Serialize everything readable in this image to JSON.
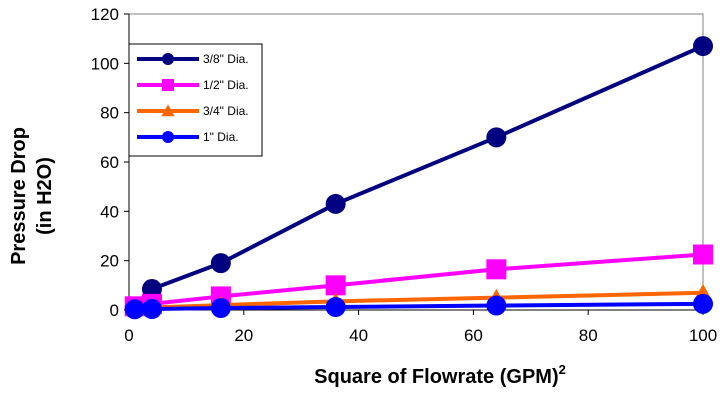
{
  "chart_data": {
    "type": "line",
    "title": "",
    "xlabel": "Square of Flowrate (GPM)",
    "xlabel_superscript": "2",
    "ylabel_line1": "Pressure Drop",
    "ylabel_line2": "(in H2O)",
    "xlim": [
      0,
      100
    ],
    "ylim": [
      0,
      120
    ],
    "x_ticks": [
      "0",
      "20",
      "40",
      "60",
      "80",
      "100"
    ],
    "y_ticks": [
      "0",
      "20",
      "40",
      "60",
      "80",
      "100",
      "120"
    ],
    "grid": false,
    "legend_position": "top-left",
    "series": [
      {
        "name": "3/8\" Dia.",
        "color": "#000080",
        "marker": "circle",
        "x": [
          1,
          4,
          16,
          36,
          64,
          100
        ],
        "y": [
          1,
          8.5,
          19,
          43,
          70,
          107
        ]
      },
      {
        "name": "1/2\" Dia.",
        "color": "#ff00ff",
        "marker": "square",
        "x": [
          1,
          4,
          16,
          36,
          64,
          100
        ],
        "y": [
          1.5,
          2.5,
          5.5,
          10,
          16.5,
          22.5
        ]
      },
      {
        "name": "3/4\" Dia.",
        "color": "#ff6600",
        "marker": "triangle",
        "x": [
          1,
          4,
          16,
          36,
          64,
          100
        ],
        "y": [
          0.5,
          1,
          2,
          3.5,
          5,
          7
        ]
      },
      {
        "name": "1\" Dia.",
        "color": "#0000ff",
        "marker": "circle",
        "x": [
          1,
          4,
          16,
          36,
          64,
          100
        ],
        "y": [
          0.3,
          0.4,
          0.8,
          1.2,
          1.8,
          2.5
        ]
      }
    ]
  }
}
